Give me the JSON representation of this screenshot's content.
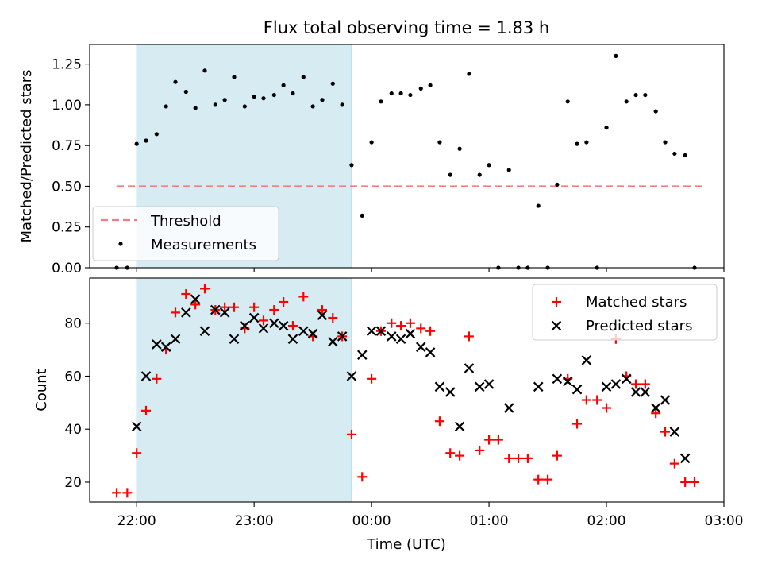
{
  "figure": {
    "title": "Flux total observing time = 1.83 h",
    "xlabel": "Time (UTC)",
    "x_tick_labels": [
      "22:00",
      "23:00",
      "00:00",
      "01:00",
      "02:00",
      "03:00"
    ],
    "x_ticks_hours": [
      22,
      23,
      24,
      25,
      26,
      27
    ],
    "xlim_hours": [
      21.6,
      27.0
    ],
    "shaded_interval_hours": [
      22.0,
      23.83
    ],
    "colors": {
      "shade": "#add8e6",
      "threshold": "#f08080",
      "measurements": "#000000",
      "matched": "#ff0000",
      "predicted": "#000000"
    }
  },
  "chart_data": [
    {
      "type": "scatter",
      "ylabel": "Matched/Predicted stars",
      "ylim": [
        0,
        1.37
      ],
      "y_ticks": [
        0.0,
        0.25,
        0.5,
        0.75,
        1.0,
        1.25
      ],
      "y_tick_labels": [
        "0.00",
        "0.25",
        "0.50",
        "0.75",
        "1.00",
        "1.25"
      ],
      "legend_position": "bottom-left",
      "legend": [
        "Threshold",
        "Measurements"
      ],
      "threshold": {
        "name": "Threshold",
        "y": 0.5,
        "x_start": 21.83,
        "x_end": 26.83,
        "style": "dashed"
      },
      "series": [
        {
          "name": "Measurements",
          "marker": "dot",
          "points": [
            [
              21.83,
              0.0
            ],
            [
              21.92,
              0.0
            ],
            [
              22.0,
              0.76
            ],
            [
              22.08,
              0.78
            ],
            [
              22.17,
              0.82
            ],
            [
              22.25,
              0.99
            ],
            [
              22.33,
              1.14
            ],
            [
              22.42,
              1.08
            ],
            [
              22.5,
              0.98
            ],
            [
              22.58,
              1.21
            ],
            [
              22.67,
              1.0
            ],
            [
              22.75,
              1.03
            ],
            [
              22.83,
              1.17
            ],
            [
              22.92,
              0.99
            ],
            [
              23.0,
              1.05
            ],
            [
              23.08,
              1.04
            ],
            [
              23.17,
              1.06
            ],
            [
              23.25,
              1.12
            ],
            [
              23.33,
              1.07
            ],
            [
              23.42,
              1.17
            ],
            [
              23.5,
              0.99
            ],
            [
              23.58,
              1.03
            ],
            [
              23.67,
              1.13
            ],
            [
              23.75,
              1.0
            ],
            [
              23.83,
              0.63
            ],
            [
              23.92,
              0.32
            ],
            [
              24.0,
              0.77
            ],
            [
              24.08,
              1.02
            ],
            [
              24.17,
              1.07
            ],
            [
              24.25,
              1.07
            ],
            [
              24.33,
              1.06
            ],
            [
              24.42,
              1.1
            ],
            [
              24.5,
              1.12
            ],
            [
              24.58,
              0.77
            ],
            [
              24.67,
              0.57
            ],
            [
              24.75,
              0.73
            ],
            [
              24.83,
              1.19
            ],
            [
              24.92,
              0.57
            ],
            [
              25.0,
              0.63
            ],
            [
              25.08,
              0.0
            ],
            [
              25.17,
              0.6
            ],
            [
              25.25,
              0.0
            ],
            [
              25.33,
              0.0
            ],
            [
              25.42,
              0.38
            ],
            [
              25.5,
              0.0
            ],
            [
              25.58,
              0.51
            ],
            [
              25.67,
              1.02
            ],
            [
              25.75,
              0.76
            ],
            [
              25.83,
              0.77
            ],
            [
              25.92,
              0.0
            ],
            [
              26.0,
              0.86
            ],
            [
              26.08,
              1.3
            ],
            [
              26.17,
              1.02
            ],
            [
              26.25,
              1.06
            ],
            [
              26.33,
              1.06
            ],
            [
              26.42,
              0.96
            ],
            [
              26.5,
              0.77
            ],
            [
              26.58,
              0.7
            ],
            [
              26.67,
              0.69
            ],
            [
              26.75,
              0.0
            ]
          ]
        }
      ]
    },
    {
      "type": "scatter",
      "ylabel": "Count",
      "ylim": [
        12.5,
        97
      ],
      "y_ticks": [
        20,
        40,
        60,
        80
      ],
      "y_tick_labels": [
        "20",
        "40",
        "60",
        "80"
      ],
      "legend_position": "top-right",
      "legend": [
        "Matched stars",
        "Predicted stars"
      ],
      "series": [
        {
          "name": "Matched stars",
          "marker": "plus",
          "points": [
            [
              21.83,
              16
            ],
            [
              21.92,
              16
            ],
            [
              22.0,
              31
            ],
            [
              22.08,
              47
            ],
            [
              22.17,
              59
            ],
            [
              22.25,
              70
            ],
            [
              22.33,
              84
            ],
            [
              22.42,
              91
            ],
            [
              22.5,
              87
            ],
            [
              22.58,
              93
            ],
            [
              22.67,
              85
            ],
            [
              22.75,
              86
            ],
            [
              22.83,
              86
            ],
            [
              22.92,
              78
            ],
            [
              23.0,
              86
            ],
            [
              23.08,
              81
            ],
            [
              23.17,
              85
            ],
            [
              23.25,
              88
            ],
            [
              23.33,
              79
            ],
            [
              23.42,
              90
            ],
            [
              23.5,
              75
            ],
            [
              23.58,
              85
            ],
            [
              23.67,
              82
            ],
            [
              23.75,
              75
            ],
            [
              23.83,
              38
            ],
            [
              23.92,
              22
            ],
            [
              24.0,
              59
            ],
            [
              24.08,
              77
            ],
            [
              24.17,
              80
            ],
            [
              24.25,
              79
            ],
            [
              24.33,
              80
            ],
            [
              24.42,
              78
            ],
            [
              24.5,
              77
            ],
            [
              24.58,
              43
            ],
            [
              24.67,
              31
            ],
            [
              24.75,
              30
            ],
            [
              24.83,
              75
            ],
            [
              24.92,
              32
            ],
            [
              25.0,
              36
            ],
            [
              25.08,
              36
            ],
            [
              25.17,
              29
            ],
            [
              25.25,
              29
            ],
            [
              25.33,
              29
            ],
            [
              25.42,
              21
            ],
            [
              25.5,
              21
            ],
            [
              25.58,
              30
            ],
            [
              25.67,
              59
            ],
            [
              25.75,
              42
            ],
            [
              25.83,
              51
            ],
            [
              25.92,
              51
            ],
            [
              26.0,
              48
            ],
            [
              26.08,
              74
            ],
            [
              26.17,
              60
            ],
            [
              26.25,
              57
            ],
            [
              26.33,
              57
            ],
            [
              26.42,
              46
            ],
            [
              26.5,
              39
            ],
            [
              26.58,
              27
            ],
            [
              26.67,
              20
            ],
            [
              26.75,
              20
            ]
          ]
        },
        {
          "name": "Predicted stars",
          "marker": "x",
          "points": [
            [
              22.0,
              41
            ],
            [
              22.08,
              60
            ],
            [
              22.17,
              72
            ],
            [
              22.25,
              71
            ],
            [
              22.33,
              74
            ],
            [
              22.42,
              84
            ],
            [
              22.5,
              89
            ],
            [
              22.58,
              77
            ],
            [
              22.67,
              85
            ],
            [
              22.75,
              84
            ],
            [
              22.83,
              74
            ],
            [
              22.92,
              79
            ],
            [
              23.0,
              82
            ],
            [
              23.08,
              78
            ],
            [
              23.17,
              80
            ],
            [
              23.25,
              79
            ],
            [
              23.33,
              74
            ],
            [
              23.42,
              77
            ],
            [
              23.5,
              76
            ],
            [
              23.58,
              83
            ],
            [
              23.67,
              73
            ],
            [
              23.75,
              75
            ],
            [
              23.83,
              60
            ],
            [
              23.92,
              68
            ],
            [
              24.0,
              77
            ],
            [
              24.08,
              77
            ],
            [
              24.17,
              75
            ],
            [
              24.25,
              74
            ],
            [
              24.33,
              76
            ],
            [
              24.42,
              71
            ],
            [
              24.5,
              69
            ],
            [
              24.58,
              56
            ],
            [
              24.67,
              54
            ],
            [
              24.75,
              41
            ],
            [
              24.83,
              63
            ],
            [
              24.92,
              56
            ],
            [
              25.0,
              57
            ],
            [
              25.17,
              48
            ],
            [
              25.42,
              56
            ],
            [
              25.58,
              59
            ],
            [
              25.67,
              58
            ],
            [
              25.75,
              55
            ],
            [
              25.83,
              66
            ],
            [
              26.0,
              56
            ],
            [
              26.08,
              57
            ],
            [
              26.17,
              59
            ],
            [
              26.25,
              54
            ],
            [
              26.33,
              54
            ],
            [
              26.42,
              48
            ],
            [
              26.5,
              51
            ],
            [
              26.58,
              39
            ],
            [
              26.67,
              29
            ]
          ]
        }
      ]
    }
  ]
}
